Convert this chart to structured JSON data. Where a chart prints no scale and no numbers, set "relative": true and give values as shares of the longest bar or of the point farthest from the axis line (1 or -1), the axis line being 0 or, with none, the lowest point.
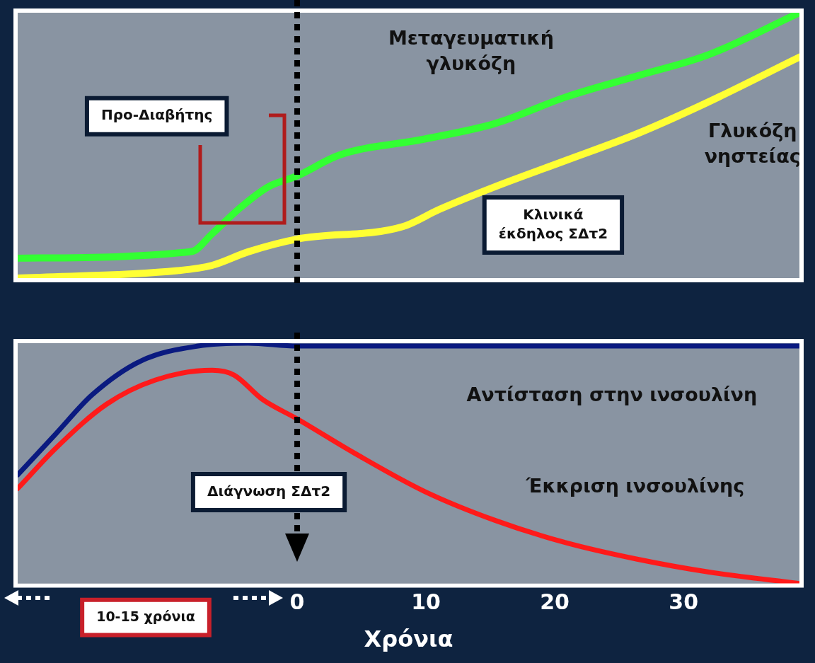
{
  "chart_data": [
    {
      "type": "line",
      "relative": true,
      "xlim": [
        -21.7,
        39
      ],
      "xticks": [
        0,
        10,
        20,
        30
      ],
      "tick_labels": false,
      "grid": false,
      "legend": false,
      "marker": "none",
      "series": [
        {
          "name": "Μεταγευματική γλυκόζη",
          "color": "#33ff33",
          "x": [
            -21.7,
            -8.2,
            -6.6,
            -4.4,
            -2.2,
            0,
            3.3,
            9.9,
            15.4,
            20.9,
            26.4,
            31.9,
            39
          ],
          "values": [
            0.075,
            0.1,
            0.167,
            0.266,
            0.345,
            0.385,
            0.464,
            0.524,
            0.583,
            0.683,
            0.762,
            0.841,
            1.0
          ]
        },
        {
          "name": "Γλυκόζη νηστείας",
          "color": "#ffff33",
          "x": [
            -21.7,
            -9.3,
            -6.6,
            -3.8,
            0,
            8.2,
            11,
            15.4,
            20.9,
            26.4,
            31.9,
            39
          ],
          "values": [
            0,
            0.028,
            0.048,
            0.099,
            0.147,
            0.194,
            0.258,
            0.345,
            0.444,
            0.544,
            0.663,
            0.833
          ]
        }
      ],
      "ref_lines": [
        {
          "axis": "x",
          "value": 0,
          "color": "#000000",
          "line_style": "dotted"
        }
      ],
      "annotations": [
        "Προ-Διαβήτης",
        "Κλινικά έκδηλος ΣΔτ2"
      ]
    },
    {
      "type": "line",
      "relative": true,
      "xlim": [
        -21.7,
        39
      ],
      "xticks": [
        0,
        10,
        20,
        30
      ],
      "xlabel": "Χρόνια",
      "grid": false,
      "legend": false,
      "marker": "none",
      "series": [
        {
          "name": "Αντίσταση στην ινσουλίνη",
          "color": "#0a1a80",
          "x": [
            -21.7,
            -18.7,
            -15.9,
            -12.1,
            -7.7,
            -3.8,
            0,
            39
          ],
          "values": [
            0.452,
            0.625,
            0.786,
            0.927,
            0.988,
            1.0,
            0.988,
            0.988
          ]
        },
        {
          "name": "Έκκριση ινσουλίνης",
          "color": "#ff1a1a",
          "x": [
            -21.7,
            -18.7,
            -14.8,
            -11,
            -6.6,
            -4.9,
            -2.7,
            0,
            4.4,
            9.9,
            15.4,
            20.9,
            26.4,
            31.9,
            39
          ],
          "values": [
            0.395,
            0.565,
            0.746,
            0.847,
            0.887,
            0.867,
            0.766,
            0.685,
            0.544,
            0.383,
            0.262,
            0.169,
            0.101,
            0.048,
            0
          ]
        }
      ],
      "ref_lines": [
        {
          "axis": "x",
          "value": 0,
          "label": "Διάγνωση ΣΔτ2",
          "color": "#000000",
          "line_style": "dotted"
        }
      ],
      "annotations": [
        "10-15 χρόνια"
      ]
    }
  ]
}
